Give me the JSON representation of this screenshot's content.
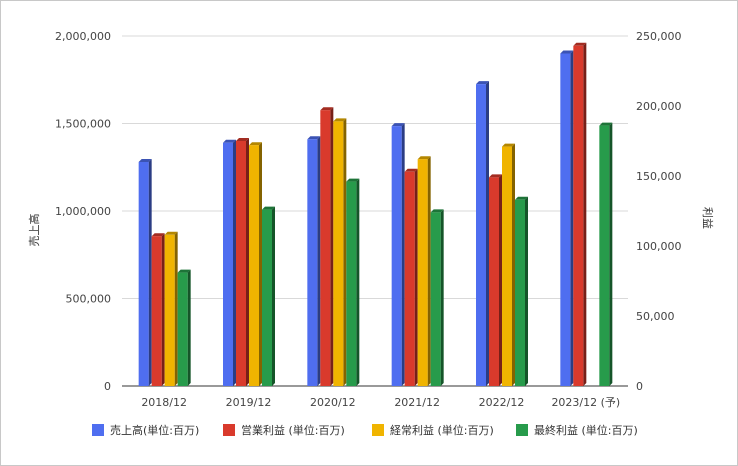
{
  "chart_data": {
    "type": "bar",
    "categories": [
      "2018/12",
      "2019/12",
      "2020/12",
      "2021/12",
      "2022/12",
      "2023/12 (予)"
    ],
    "series": [
      {
        "name": "売上高(単位:百万)",
        "axis": "left",
        "color": "#4f6ef0",
        "values": [
          1280000,
          1390000,
          1410000,
          1485000,
          1725000,
          1900000
        ]
      },
      {
        "name": "営業利益 (単位:百万)",
        "axis": "right",
        "color": "#d93a2c",
        "values": [
          107000,
          175000,
          197000,
          153000,
          149000,
          243000
        ]
      },
      {
        "name": "経常利益 (単位:百万)",
        "axis": "right",
        "color": "#f0b400",
        "values": [
          108000,
          172000,
          189000,
          162000,
          171000,
          null
        ]
      },
      {
        "name": "最終利益 (単位:百万)",
        "axis": "right",
        "color": "#279b4b",
        "values": [
          81000,
          126000,
          146000,
          124000,
          133000,
          186000
        ]
      }
    ],
    "y_left": {
      "label": "売上高",
      "range": [
        0,
        2000000
      ],
      "ticks": [
        "0",
        "500,000",
        "1,000,000",
        "1,500,000",
        "2,000,000"
      ]
    },
    "y_right": {
      "label": "利益",
      "range": [
        0,
        250000
      ],
      "ticks": [
        "0",
        "50,000",
        "100,000",
        "150,000",
        "200,000",
        "250,000"
      ]
    },
    "grid": true,
    "legend": "bottom"
  }
}
